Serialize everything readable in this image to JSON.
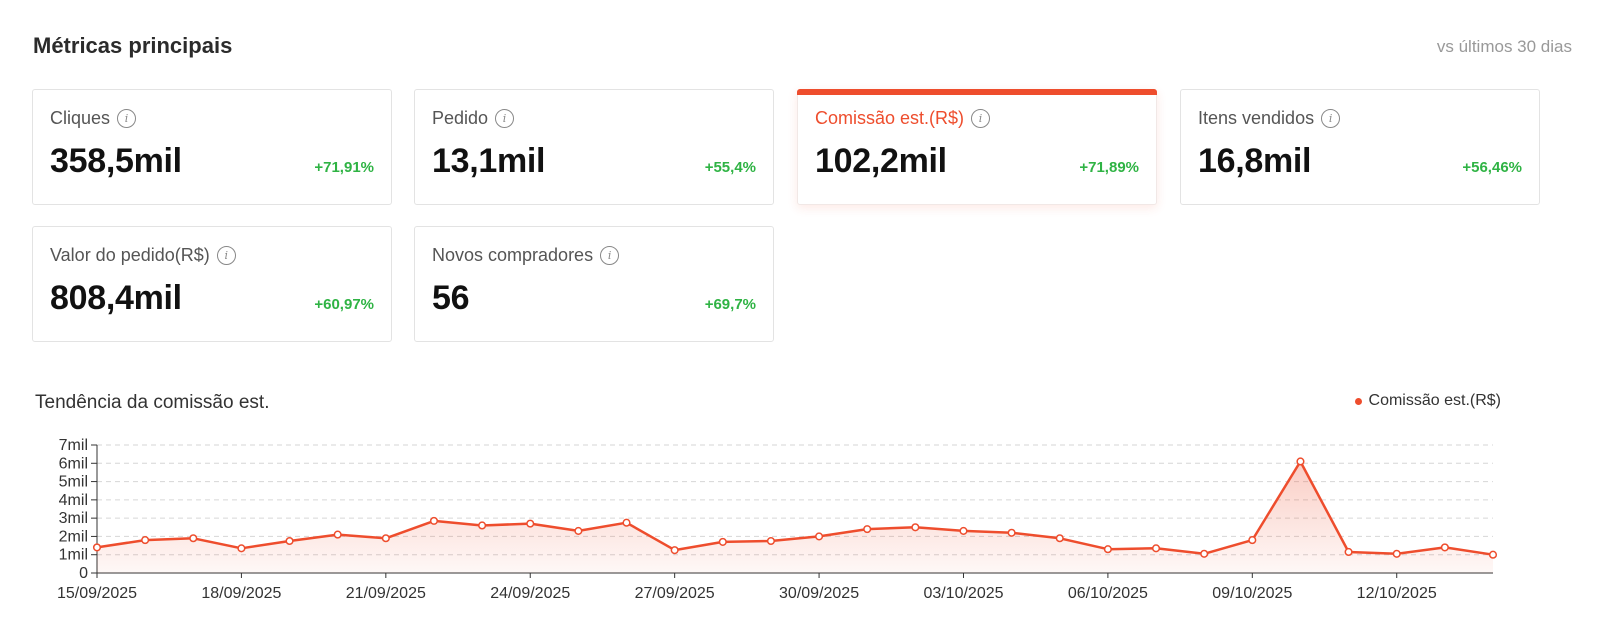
{
  "header": {
    "title": "Métricas principais",
    "compare": "vs últimos 30 dias"
  },
  "cards": [
    {
      "label": "Cliques",
      "value": "358,5mil",
      "change": "+71,91%"
    },
    {
      "label": "Pedido",
      "value": "13,1mil",
      "change": "+55,4%"
    },
    {
      "label": "Comissão est.(R$)",
      "value": "102,2mil",
      "change": "+71,89%",
      "active": true
    },
    {
      "label": "Itens vendidos",
      "value": "16,8mil",
      "change": "+56,46%"
    },
    {
      "label": "Valor do pedido(R$)",
      "value": "808,4mil",
      "change": "+60,97%"
    },
    {
      "label": "Novos compradores",
      "value": "56",
      "change": "+69,7%"
    }
  ],
  "icons": {
    "info": "info-icon",
    "info_glyph": "i"
  },
  "colors": {
    "accent": "#ee4d2d",
    "positive": "#2fb344"
  },
  "chart": {
    "title": "Tendência da comissão est.",
    "legend": "Comissão est.(R$)"
  },
  "chart_data": {
    "type": "area",
    "title": "Tendência da comissão est.",
    "series": [
      {
        "name": "Comissão est.(R$)",
        "values": [
          1400,
          1800,
          1900,
          1350,
          1750,
          2100,
          1900,
          2850,
          2600,
          2700,
          2300,
          2750,
          1250,
          1700,
          1750,
          2000,
          2400,
          2500,
          2300,
          2200,
          1900,
          1300,
          1350,
          1050,
          1800,
          6100,
          1150,
          1050,
          1400,
          1000
        ]
      }
    ],
    "x_tick_labels": [
      "15/09/2025",
      "18/09/2025",
      "21/09/2025",
      "24/09/2025",
      "27/09/2025",
      "30/09/2025",
      "03/10/2025",
      "06/10/2025",
      "09/10/2025",
      "12/10/2025"
    ],
    "y_tick_labels": [
      "0",
      "1mil",
      "2mil",
      "3mil",
      "4mil",
      "5mil",
      "6mil",
      "7mil"
    ],
    "ylim": [
      0,
      7000
    ],
    "x_tick_every": 3,
    "grid": true,
    "legend_position": "top-right"
  }
}
